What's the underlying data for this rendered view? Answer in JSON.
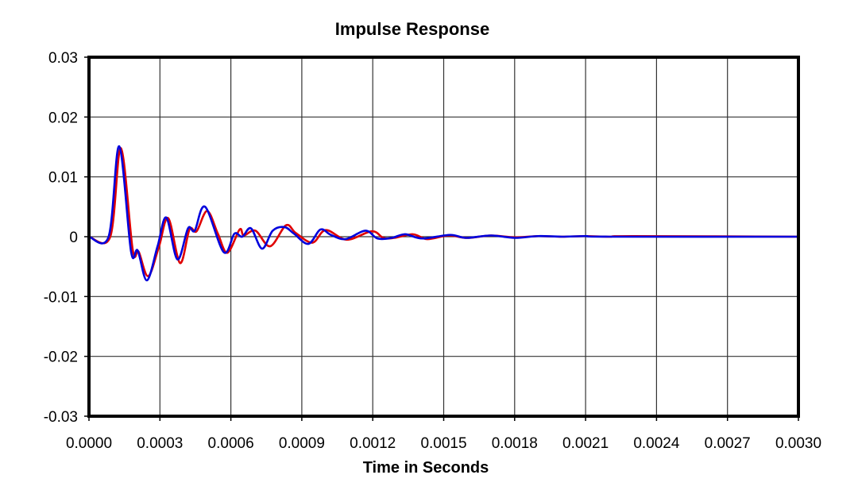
{
  "chart_data": {
    "type": "line",
    "title": "Impulse Response",
    "xlabel": "Time in Seconds",
    "ylabel": "",
    "xlim": [
      0,
      0.003
    ],
    "ylim": [
      -0.03,
      0.03
    ],
    "xticks": [
      0,
      0.0003,
      0.0006,
      0.0009,
      0.0012,
      0.0015,
      0.0018,
      0.0021,
      0.0024,
      0.0027,
      0.003
    ],
    "xtick_labels": [
      "0.0000",
      "0.0003",
      "0.0006",
      "0.0009",
      "0.0012",
      "0.0015",
      "0.0018",
      "0.0021",
      "0.0024",
      "0.0027",
      "0.0030"
    ],
    "yticks": [
      0.03,
      0.02,
      0.01,
      0,
      -0.01,
      -0.02,
      -0.03
    ],
    "ytick_labels": [
      "0.03",
      "0.02",
      "0.01",
      "0",
      "-0.01",
      "-0.02",
      "-0.03"
    ],
    "grid": true,
    "legend": "none",
    "series": [
      {
        "name": "red",
        "color": "#e00000",
        "x": [
          0,
          9e-05,
          0.000135,
          0.000185,
          0.00021,
          0.00025,
          0.000295,
          0.000335,
          0.000385,
          0.000425,
          0.000455,
          0.0005,
          0.000545,
          0.000585,
          0.000637,
          0.000655,
          0.000704,
          0.000766,
          0.000833,
          0.000875,
          0.000945,
          0.001001,
          0.00109,
          0.001196,
          0.001245,
          0.00129,
          0.00137,
          0.00143,
          0.00152,
          0.0016,
          0.0017,
          0.0018,
          0.0019,
          0.002,
          0.0021,
          0.0022,
          0.0023,
          0.003
        ],
        "y": [
          0,
          0,
          0.0148,
          -0.0022,
          -0.0025,
          -0.0066,
          -0.0018,
          0.0031,
          -0.0044,
          0.0012,
          0.0009,
          0.0043,
          0.0005,
          -0.0027,
          0.0012,
          0.0002,
          0.001,
          -0.0016,
          0.0019,
          0.0006,
          -0.001,
          0.0011,
          -0.0005,
          0.0009,
          -0.0002,
          -0.0002,
          0.0004,
          -0.0004,
          0.0002,
          -0.0002,
          0.0002,
          -0.0001,
          0.0001,
          0,
          0.0001,
          0,
          0.0001,
          0
        ]
      },
      {
        "name": "blue",
        "color": "#0000dd",
        "x": [
          0,
          8.3e-05,
          0.000128,
          0.000178,
          0.000206,
          0.000245,
          0.00029,
          0.000327,
          0.000374,
          0.000419,
          0.000447,
          0.000491,
          0.00057,
          0.000615,
          0.000648,
          0.000685,
          0.000732,
          0.000777,
          0.000827,
          0.000867,
          0.000928,
          0.000979,
          0.001023,
          0.001085,
          0.001169,
          0.00122,
          0.00128,
          0.001337,
          0.00141,
          0.001527,
          0.001595,
          0.0017,
          0.0018,
          0.0019,
          0.002,
          0.0021,
          0.0022,
          0.003
        ],
        "y": [
          0,
          0,
          0.0151,
          -0.0025,
          -0.0023,
          -0.0073,
          -0.0016,
          0.0032,
          -0.0038,
          0.0014,
          0.001,
          0.005,
          -0.0026,
          0.0005,
          0,
          0.0014,
          -0.002,
          0.001,
          0.0016,
          0.0005,
          -0.0012,
          0.0012,
          0.0003,
          -0.0004,
          0.001,
          -0.0003,
          -0.0002,
          0.0004,
          -0.0003,
          0.0003,
          -0.0002,
          0.0002,
          -0.0002,
          0.0001,
          0,
          0.0001,
          0,
          0
        ]
      }
    ]
  }
}
